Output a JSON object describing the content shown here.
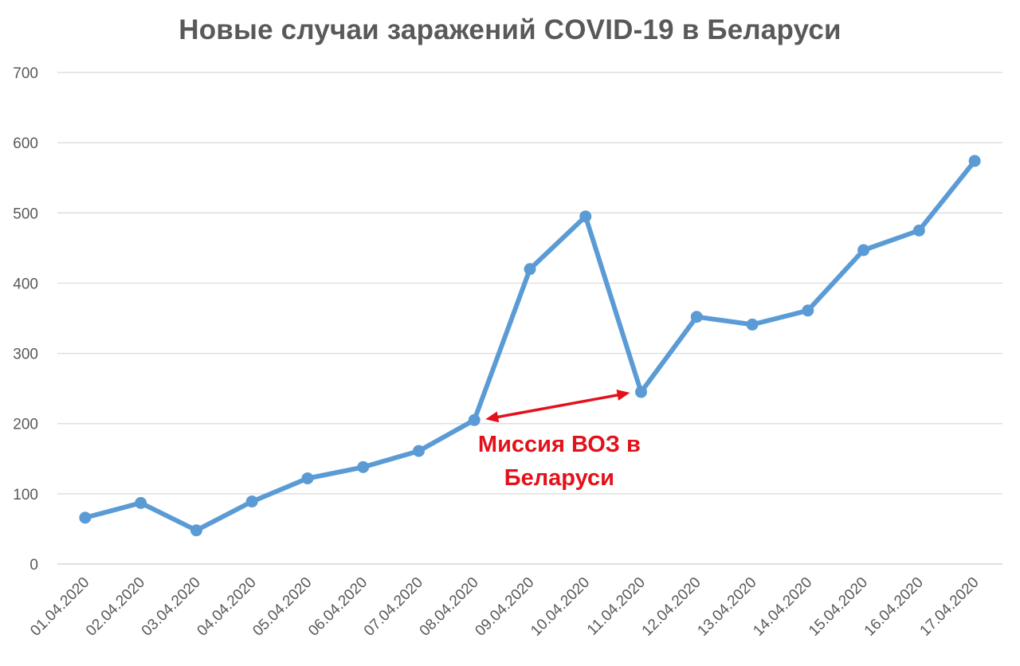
{
  "chart_data": {
    "type": "line",
    "title": "Новые случаи заражений COVID-19 в Беларуси",
    "xlabel": "",
    "ylabel": "",
    "categories": [
      "01.04.2020",
      "02.04.2020",
      "03.04.2020",
      "04.04.2020",
      "05.04.2020",
      "06.04.2020",
      "07.04.2020",
      "08.04.2020",
      "09.04.2020",
      "10.04.2020",
      "11.04.2020",
      "12.04.2020",
      "13.04.2020",
      "14.04.2020",
      "15.04.2020",
      "16.04.2020",
      "17.04.2020"
    ],
    "series": [
      {
        "values": [
          66,
          87,
          48,
          89,
          122,
          138,
          161,
          205,
          420,
          495,
          245,
          352,
          341,
          361,
          447,
          475,
          574
        ],
        "color": "#5b9bd5"
      }
    ],
    "ylim": [
      0,
      700
    ],
    "yticks": [
      0,
      100,
      200,
      300,
      400,
      500,
      600,
      700
    ],
    "grid": true,
    "legend": "none",
    "annotation": {
      "lines": [
        "Миссия ВОЗ в",
        "Беларуси"
      ],
      "from_category": "08.04.2020",
      "to_category": "11.04.2020",
      "color": "#e3111a"
    }
  }
}
